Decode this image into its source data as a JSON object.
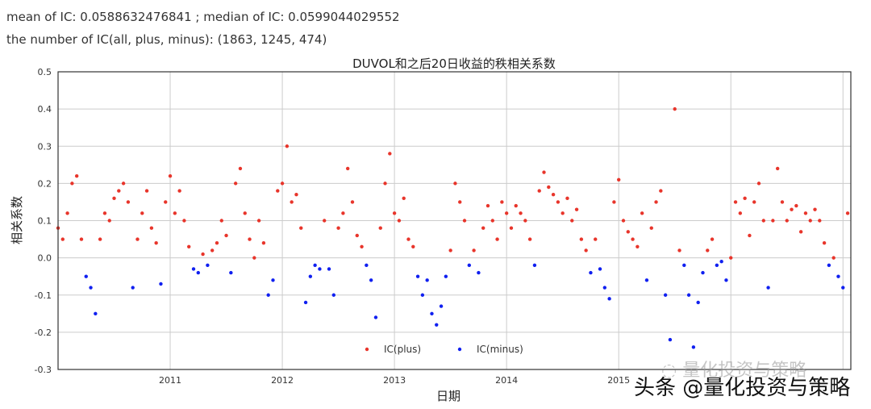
{
  "header": {
    "line1": "mean of IC:  0.0588632476841 ;   median of IC:  0.0599044029552",
    "line2": "the number of IC(all, plus, minus):  (1863, 1245, 474)"
  },
  "watermark": {
    "faded": "量化投资与策略",
    "main": "头条 @量化投资与策略"
  },
  "chart_data": {
    "type": "scatter",
    "title": "DUVOL和之后20日收益的秩相关系数",
    "xlabel": "日期",
    "ylabel": "相关系数",
    "ylim": [
      -0.3,
      0.5
    ],
    "xlim": [
      2010.0,
      2017.07
    ],
    "yticks": [
      "-0.3",
      "-0.2",
      "-0.1",
      "0.0",
      "0.1",
      "0.2",
      "0.3",
      "0.4",
      "0.5"
    ],
    "xticks": [
      {
        "v": 2011,
        "label": "2011"
      },
      {
        "v": 2012,
        "label": "2012"
      },
      {
        "v": 2013,
        "label": "2013"
      },
      {
        "v": 2014,
        "label": "2014"
      },
      {
        "v": 2015,
        "label": "2015"
      }
    ],
    "gridlines_x": [
      2011,
      2012,
      2013,
      2014,
      2015,
      2016,
      2017
    ],
    "grid": true,
    "legend_position": "bottom-center",
    "series": [
      {
        "name": "IC(plus)",
        "color": "#e8352b",
        "rule": "value >= 0"
      },
      {
        "name": "IC(minus)",
        "color": "#1020f0",
        "rule": "value < 0"
      }
    ],
    "x_start": 2010.0,
    "x_step_years": 0.041667,
    "values": [
      0.08,
      0.05,
      0.12,
      0.2,
      0.22,
      0.05,
      -0.05,
      -0.08,
      -0.15,
      0.05,
      0.12,
      0.1,
      0.16,
      0.18,
      0.2,
      0.15,
      -0.08,
      0.05,
      0.12,
      0.18,
      0.08,
      0.04,
      -0.07,
      0.15,
      0.22,
      0.12,
      0.18,
      0.1,
      0.03,
      -0.03,
      -0.04,
      0.01,
      -0.02,
      0.02,
      0.04,
      0.1,
      0.06,
      -0.04,
      0.2,
      0.24,
      0.12,
      0.05,
      0.0,
      0.1,
      0.04,
      -0.1,
      -0.06,
      0.18,
      0.2,
      0.3,
      0.15,
      0.17,
      0.08,
      -0.12,
      -0.05,
      -0.02,
      -0.03,
      0.1,
      -0.03,
      -0.1,
      0.08,
      0.12,
      0.24,
      0.15,
      0.06,
      0.03,
      -0.02,
      -0.06,
      -0.16,
      0.08,
      0.2,
      0.28,
      0.12,
      0.1,
      0.16,
      0.05,
      0.03,
      -0.05,
      -0.1,
      -0.06,
      -0.15,
      -0.18,
      -0.13,
      -0.05,
      0.02,
      0.2,
      0.15,
      0.1,
      -0.02,
      0.02,
      -0.04,
      0.08,
      0.14,
      0.1,
      0.05,
      0.15,
      0.12,
      0.08,
      0.14,
      0.12,
      0.1,
      0.05,
      -0.02,
      0.18,
      0.23,
      0.19,
      0.17,
      0.15,
      0.12,
      0.16,
      0.1,
      0.13,
      0.05,
      0.02,
      -0.04,
      0.05,
      -0.03,
      -0.08,
      -0.11,
      0.15,
      0.21,
      0.1,
      0.07,
      0.05,
      0.03,
      0.12,
      -0.06,
      0.08,
      0.15,
      0.18,
      -0.1,
      -0.22,
      0.4,
      0.02,
      -0.02,
      -0.1,
      -0.24,
      -0.12,
      -0.04,
      0.02,
      0.05,
      -0.02,
      -0.01,
      -0.06,
      0.0,
      0.15,
      0.12,
      0.16,
      0.06,
      0.15,
      0.2,
      0.1,
      -0.08,
      0.1,
      0.24,
      0.15,
      0.1,
      0.13,
      0.14,
      0.07,
      0.12,
      0.1,
      0.13,
      0.1,
      0.04,
      -0.02,
      0.0,
      -0.05,
      -0.08,
      0.12
    ]
  }
}
